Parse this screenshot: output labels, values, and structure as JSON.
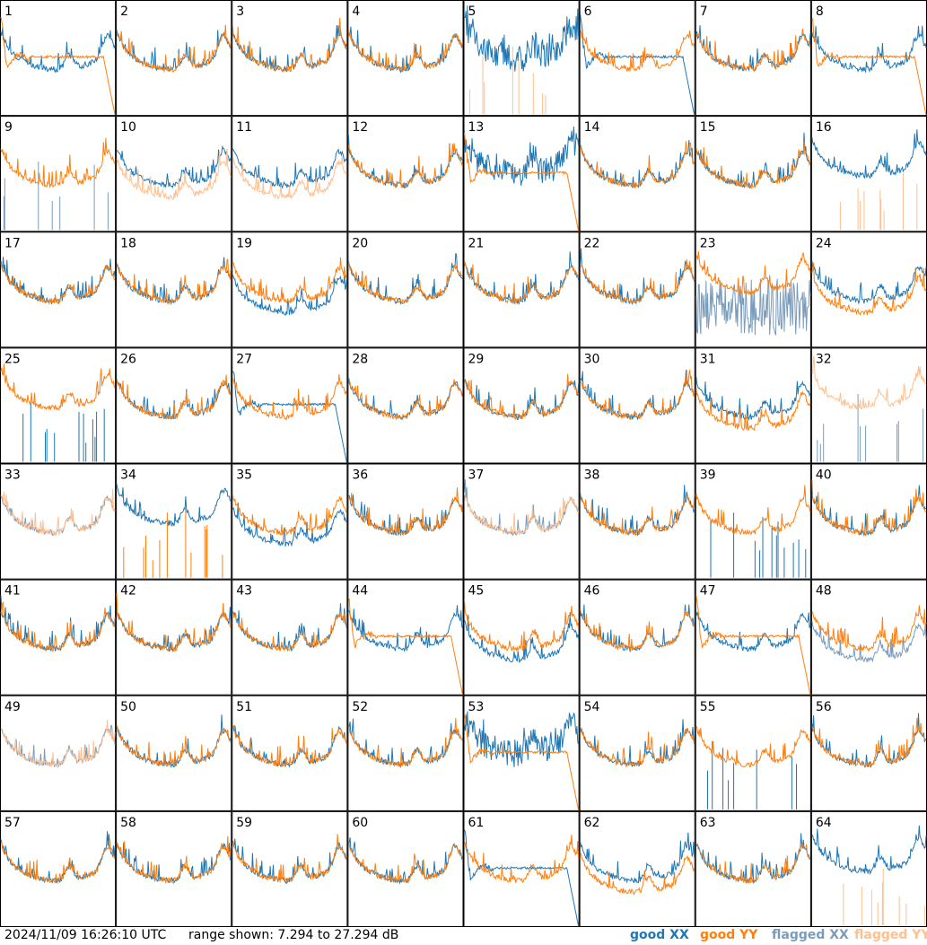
{
  "footer": {
    "timestamp": "2024/11/09 16:26:10 UTC",
    "range": "range shown: 7.294 to 27.294 dB"
  },
  "legend": [
    {
      "label": "good XX",
      "color": "#1f77b4"
    },
    {
      "label": "good YY",
      "color": "#ff7f0e"
    },
    {
      "label": "flagged XX",
      "color": "#7a9cbc"
    },
    {
      "label": "flagged YY",
      "color": "#ffbf8f"
    }
  ],
  "colors": {
    "good_xx": "#1f77b4",
    "good_yy": "#ff7f0e",
    "flagged_xx": "#7a9cbc",
    "flagged_yy": "#ffbf8f"
  },
  "chart_data": {
    "type": "line",
    "y_range_db": [
      7.294,
      27.294
    ],
    "panels": [
      {
        "label": "1",
        "xx": "good",
        "yy": "good",
        "shape_xx": "normal",
        "shape_yy": "drop"
      },
      {
        "label": "2",
        "xx": "good",
        "yy": "good",
        "shape_xx": "normal",
        "shape_yy": "normal"
      },
      {
        "label": "3",
        "xx": "good",
        "yy": "good",
        "shape_xx": "normal",
        "shape_yy": "normal"
      },
      {
        "label": "4",
        "xx": "good",
        "yy": "good",
        "shape_xx": "normal",
        "shape_yy": "normal"
      },
      {
        "label": "5",
        "xx": "good",
        "yy": "flagged-spikes",
        "shape_xx": "noisy",
        "shape_yy": "spikes"
      },
      {
        "label": "6",
        "xx": "good",
        "yy": "good",
        "shape_xx": "drop",
        "shape_yy": "normal"
      },
      {
        "label": "7",
        "xx": "good",
        "yy": "good",
        "shape_xx": "normal",
        "shape_yy": "normal"
      },
      {
        "label": "8",
        "xx": "good",
        "yy": "good",
        "shape_xx": "normal",
        "shape_yy": "drop"
      },
      {
        "label": "9",
        "xx": "flagged-spikes",
        "yy": "good",
        "shape_xx": "spikes",
        "shape_yy": "normal"
      },
      {
        "label": "10",
        "xx": "good",
        "yy": "flagged",
        "shape_xx": "normal",
        "shape_yy": "low"
      },
      {
        "label": "11",
        "xx": "good",
        "yy": "flagged",
        "shape_xx": "normal",
        "shape_yy": "low"
      },
      {
        "label": "12",
        "xx": "good",
        "yy": "good",
        "shape_xx": "normal",
        "shape_yy": "normal"
      },
      {
        "label": "13",
        "xx": "good",
        "yy": "good",
        "shape_xx": "noisy",
        "shape_yy": "drop"
      },
      {
        "label": "14",
        "xx": "good",
        "yy": "good",
        "shape_xx": "normal",
        "shape_yy": "normal"
      },
      {
        "label": "15",
        "xx": "good",
        "yy": "good",
        "shape_xx": "normal",
        "shape_yy": "normal"
      },
      {
        "label": "16",
        "xx": "good",
        "yy": "flagged-spikes",
        "shape_xx": "high",
        "shape_yy": "spikes"
      },
      {
        "label": "17",
        "xx": "good",
        "yy": "good",
        "shape_xx": "normal",
        "shape_yy": "normal"
      },
      {
        "label": "18",
        "xx": "good",
        "yy": "good",
        "shape_xx": "normal",
        "shape_yy": "normal"
      },
      {
        "label": "19",
        "xx": "good",
        "yy": "good",
        "shape_xx": "low",
        "shape_yy": "normal"
      },
      {
        "label": "20",
        "xx": "good",
        "yy": "good",
        "shape_xx": "normal",
        "shape_yy": "normal"
      },
      {
        "label": "21",
        "xx": "good",
        "yy": "good",
        "shape_xx": "normal",
        "shape_yy": "normal"
      },
      {
        "label": "22",
        "xx": "good",
        "yy": "good",
        "shape_xx": "normal",
        "shape_yy": "normal"
      },
      {
        "label": "23",
        "xx": "flagged-noise",
        "yy": "good",
        "shape_xx": "noise",
        "shape_yy": "high"
      },
      {
        "label": "24",
        "xx": "good",
        "yy": "good",
        "shape_xx": "normal",
        "shape_yy": "low"
      },
      {
        "label": "25",
        "xx": "good-spikes",
        "yy": "good",
        "shape_xx": "spikes",
        "shape_yy": "high"
      },
      {
        "label": "26",
        "xx": "good",
        "yy": "good",
        "shape_xx": "normal",
        "shape_yy": "normal"
      },
      {
        "label": "27",
        "xx": "good",
        "yy": "good",
        "shape_xx": "drop",
        "shape_yy": "normal"
      },
      {
        "label": "28",
        "xx": "good",
        "yy": "good",
        "shape_xx": "normal",
        "shape_yy": "normal"
      },
      {
        "label": "29",
        "xx": "good",
        "yy": "good",
        "shape_xx": "normal",
        "shape_yy": "normal"
      },
      {
        "label": "30",
        "xx": "good",
        "yy": "good",
        "shape_xx": "normal",
        "shape_yy": "normal"
      },
      {
        "label": "31",
        "xx": "good",
        "yy": "good",
        "shape_xx": "normal",
        "shape_yy": "low"
      },
      {
        "label": "32",
        "xx": "flagged-spikes",
        "yy": "flagged",
        "shape_xx": "spikes",
        "shape_yy": "high"
      },
      {
        "label": "33",
        "xx": "flagged",
        "yy": "flagged",
        "shape_xx": "normal",
        "shape_yy": "normal"
      },
      {
        "label": "34",
        "xx": "good",
        "yy": "good-spikes",
        "shape_xx": "high",
        "shape_yy": "spikes"
      },
      {
        "label": "35",
        "xx": "good",
        "yy": "good",
        "shape_xx": "low",
        "shape_yy": "normal"
      },
      {
        "label": "36",
        "xx": "good",
        "yy": "good",
        "shape_xx": "normal",
        "shape_yy": "normal"
      },
      {
        "label": "37",
        "xx": "flagged",
        "yy": "flagged",
        "shape_xx": "normal",
        "shape_yy": "normal"
      },
      {
        "label": "38",
        "xx": "good",
        "yy": "good",
        "shape_xx": "normal",
        "shape_yy": "normal"
      },
      {
        "label": "39",
        "xx": "good-spikes",
        "yy": "good",
        "shape_xx": "spikes",
        "shape_yy": "normal"
      },
      {
        "label": "40",
        "xx": "good",
        "yy": "good",
        "shape_xx": "normal",
        "shape_yy": "normal"
      },
      {
        "label": "41",
        "xx": "good",
        "yy": "good",
        "shape_xx": "normal",
        "shape_yy": "normal"
      },
      {
        "label": "42",
        "xx": "good",
        "yy": "good",
        "shape_xx": "normal",
        "shape_yy": "normal"
      },
      {
        "label": "43",
        "xx": "good",
        "yy": "good",
        "shape_xx": "normal",
        "shape_yy": "normal"
      },
      {
        "label": "44",
        "xx": "good",
        "yy": "good",
        "shape_xx": "normal",
        "shape_yy": "drop"
      },
      {
        "label": "45",
        "xx": "good",
        "yy": "good",
        "shape_xx": "low",
        "shape_yy": "normal"
      },
      {
        "label": "46",
        "xx": "good",
        "yy": "good",
        "shape_xx": "normal",
        "shape_yy": "normal"
      },
      {
        "label": "47",
        "xx": "good",
        "yy": "good",
        "shape_xx": "normal",
        "shape_yy": "drop"
      },
      {
        "label": "48",
        "xx": "flagged",
        "yy": "good",
        "shape_xx": "low",
        "shape_yy": "normal"
      },
      {
        "label": "49",
        "xx": "flagged",
        "yy": "flagged",
        "shape_xx": "normal",
        "shape_yy": "normal"
      },
      {
        "label": "50",
        "xx": "good",
        "yy": "good",
        "shape_xx": "normal",
        "shape_yy": "normal"
      },
      {
        "label": "51",
        "xx": "good",
        "yy": "good",
        "shape_xx": "normal",
        "shape_yy": "normal"
      },
      {
        "label": "52",
        "xx": "good",
        "yy": "good",
        "shape_xx": "normal",
        "shape_yy": "normal"
      },
      {
        "label": "53",
        "xx": "good",
        "yy": "good",
        "shape_xx": "noisy",
        "shape_yy": "drop"
      },
      {
        "label": "54",
        "xx": "good",
        "yy": "good",
        "shape_xx": "normal",
        "shape_yy": "normal"
      },
      {
        "label": "55",
        "xx": "good-spikes",
        "yy": "good",
        "shape_xx": "spikes",
        "shape_yy": "normal"
      },
      {
        "label": "56",
        "xx": "good",
        "yy": "good",
        "shape_xx": "normal",
        "shape_yy": "normal"
      },
      {
        "label": "57",
        "xx": "good",
        "yy": "good",
        "shape_xx": "normal",
        "shape_yy": "normal"
      },
      {
        "label": "58",
        "xx": "good",
        "yy": "good",
        "shape_xx": "normal",
        "shape_yy": "normal"
      },
      {
        "label": "59",
        "xx": "good",
        "yy": "good",
        "shape_xx": "normal",
        "shape_yy": "normal"
      },
      {
        "label": "60",
        "xx": "good",
        "yy": "good",
        "shape_xx": "normal",
        "shape_yy": "normal"
      },
      {
        "label": "61",
        "xx": "good",
        "yy": "good",
        "shape_xx": "drop",
        "shape_yy": "normal"
      },
      {
        "label": "62",
        "xx": "good",
        "yy": "good",
        "shape_xx": "normal",
        "shape_yy": "low"
      },
      {
        "label": "63",
        "xx": "good",
        "yy": "good",
        "shape_xx": "normal",
        "shape_yy": "normal"
      },
      {
        "label": "64",
        "xx": "good",
        "yy": "flagged-spikes",
        "shape_xx": "high",
        "shape_yy": "spikes"
      }
    ]
  }
}
